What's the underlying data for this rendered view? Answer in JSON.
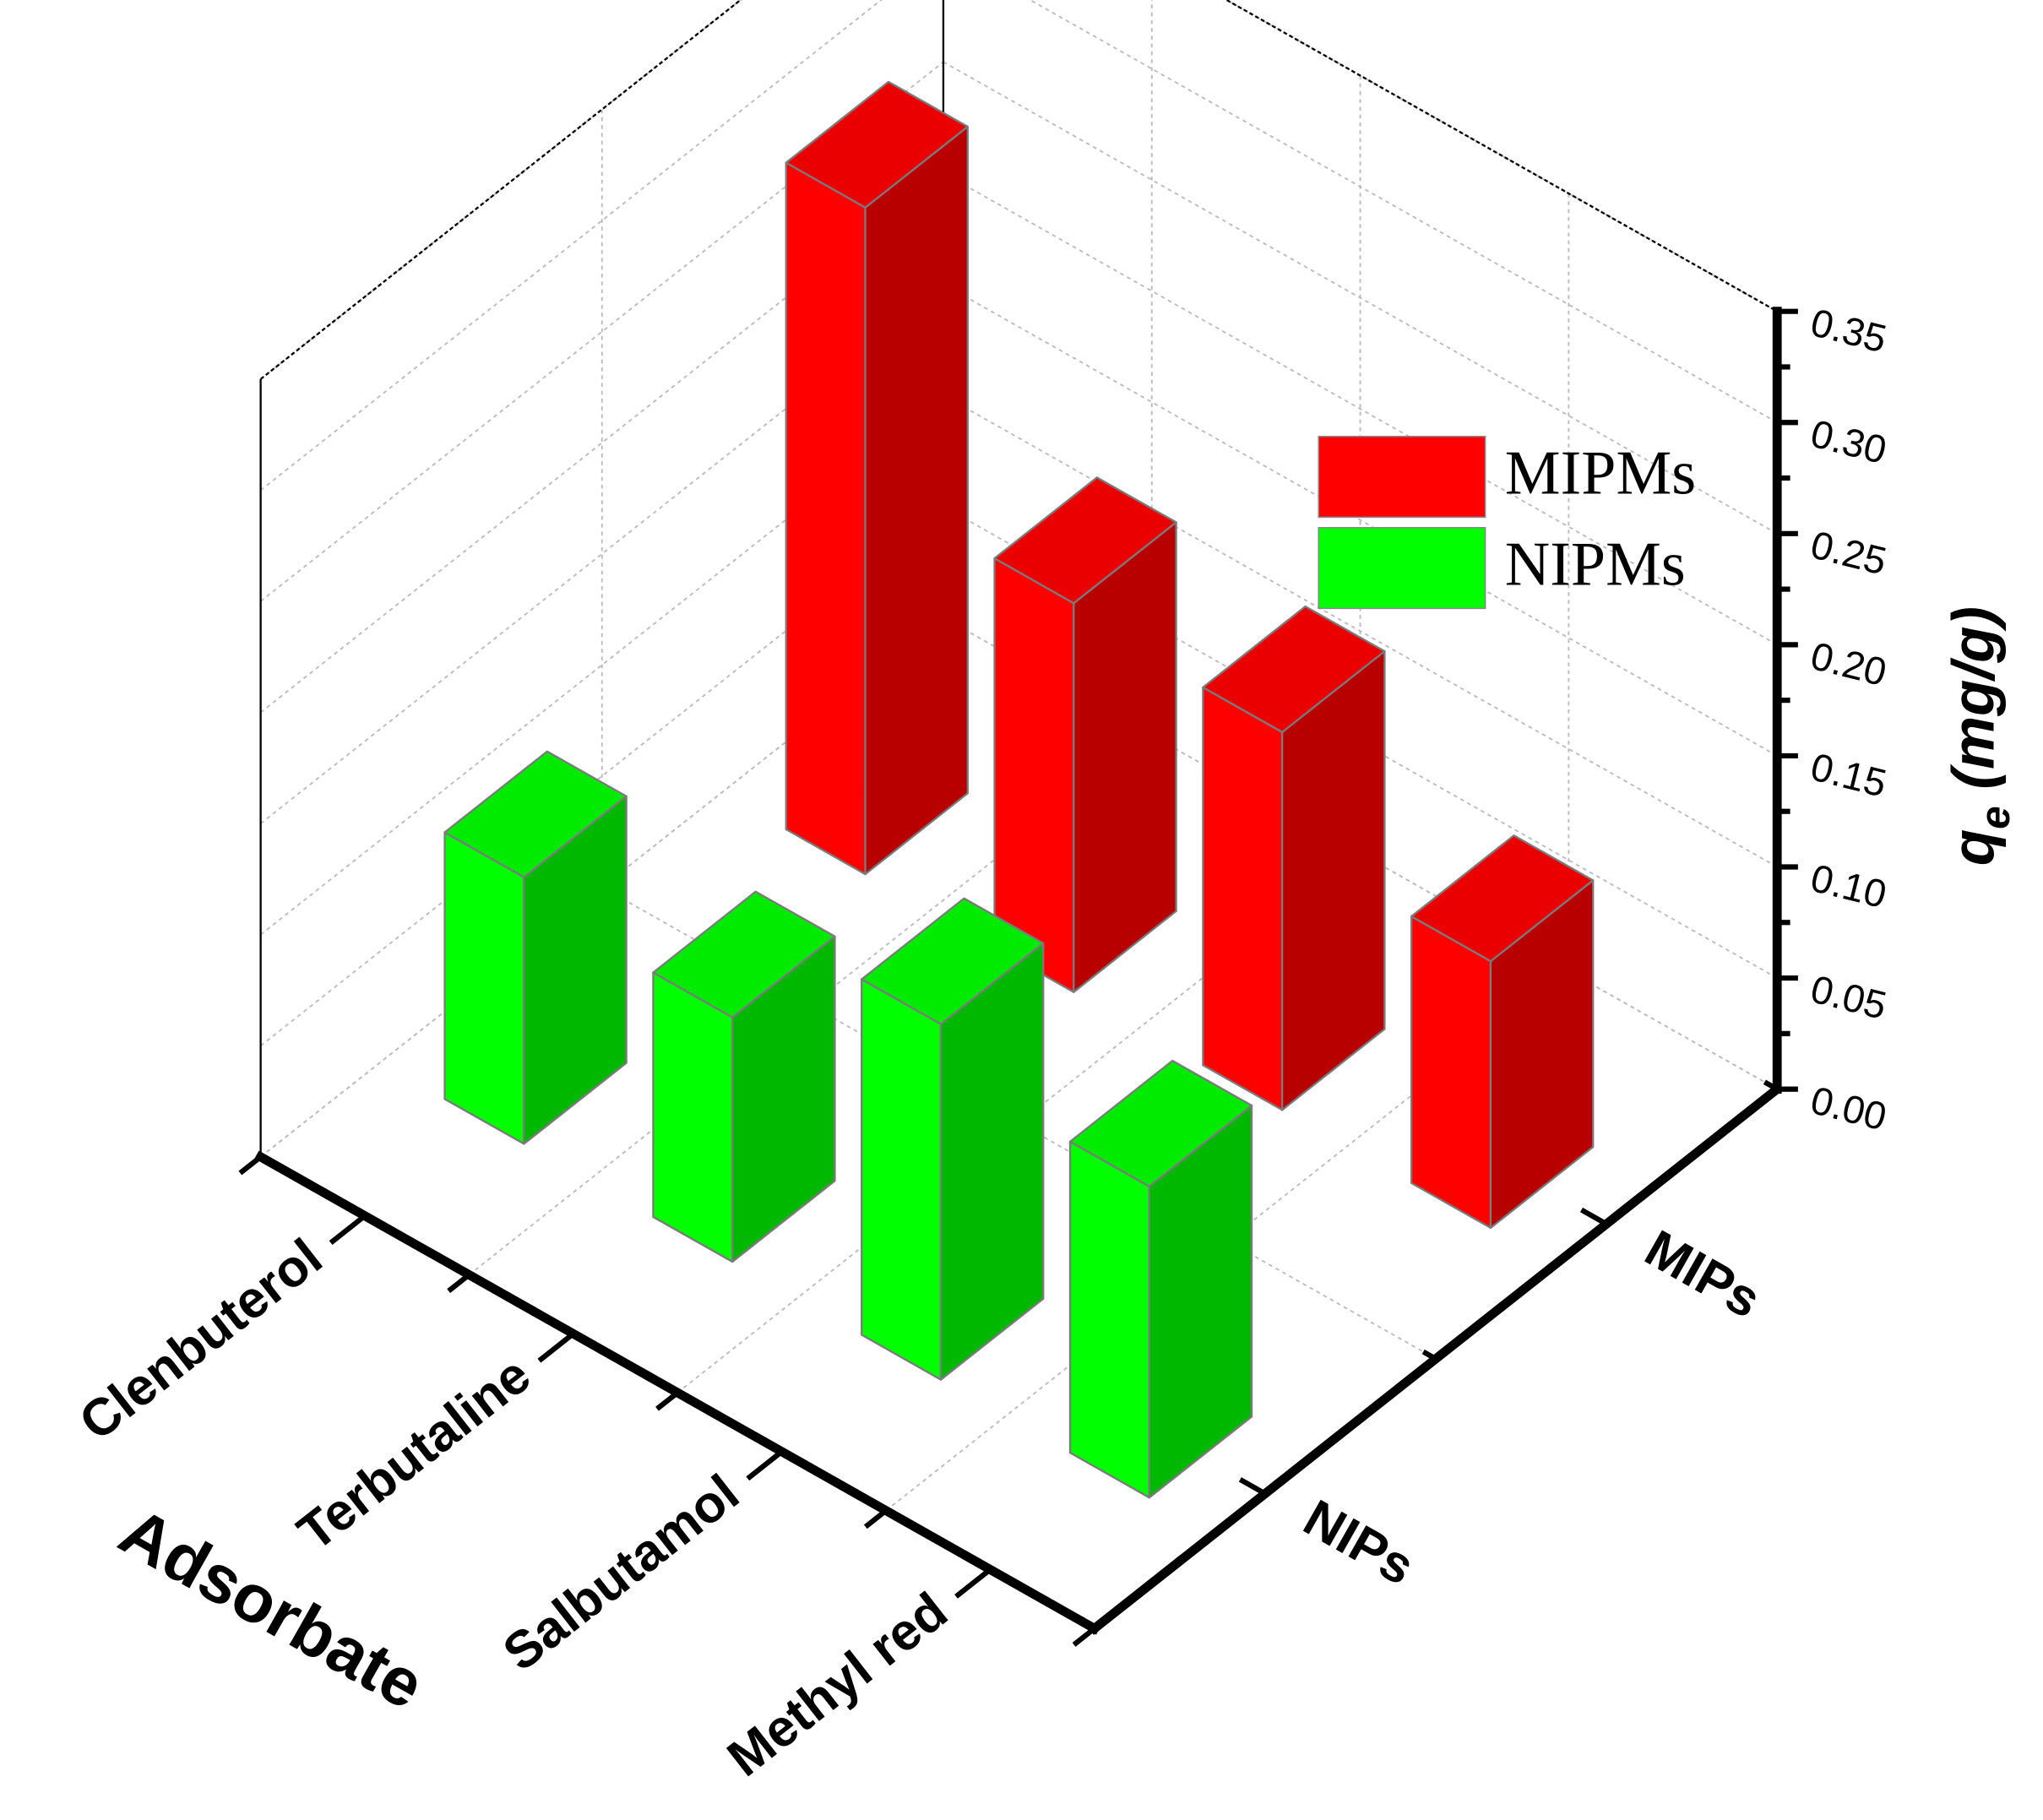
{
  "chart_data": {
    "type": "bar3d",
    "x_label": "Adsorbate",
    "z_label": [
      "q",
      "e",
      " (mg/g)"
    ],
    "categories": [
      "Clenbuterol",
      "Terbutaline",
      "Salbutamol",
      "Methyl red"
    ],
    "depth_categories": [
      "MIPs",
      "NIPs"
    ],
    "series": [
      {
        "name": "MIPMs",
        "color": "#ff0000",
        "values": [
          0.3,
          0.175,
          0.17,
          0.12
        ]
      },
      {
        "name": "NIPMs",
        "color": "#00ff00",
        "values": [
          0.12,
          0.11,
          0.16,
          0.14
        ]
      }
    ],
    "zlim": [
      0,
      0.35
    ],
    "zticks": [
      {
        "value": 0,
        "label": "0.00"
      },
      {
        "value": 0.05,
        "label": "0.05"
      },
      {
        "value": 0.1,
        "label": "0.10"
      },
      {
        "value": 0.15,
        "label": "0.15"
      },
      {
        "value": 0.2,
        "label": "0.20"
      },
      {
        "value": 0.25,
        "label": "0.25"
      },
      {
        "value": 0.3,
        "label": "0.30"
      },
      {
        "value": 0.35,
        "label": "0.35"
      }
    ],
    "grid": true
  }
}
